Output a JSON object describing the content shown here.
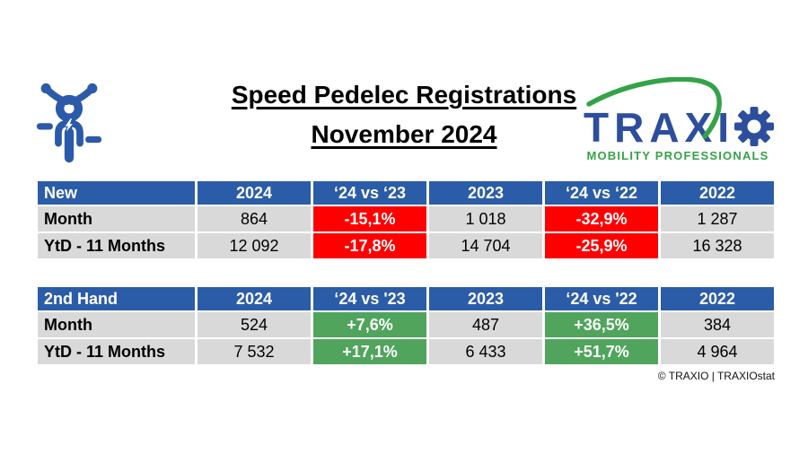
{
  "title": {
    "line1": "Speed Pedelec Registrations",
    "line2": "November 2024"
  },
  "logo": {
    "brand_text": "TRAXI",
    "tagline": "MOBILITY PROFESSIONALS"
  },
  "icons": {
    "bike": "speed-pedelec-icon",
    "gear": "gear-icon",
    "swoosh": "swoosh-arc"
  },
  "colors": {
    "header_blue": "#2B5CA7",
    "row_grey": "#D9D9D9",
    "negative_red": "#FF0000",
    "positive_green": "#50A45C",
    "brand_blue": "#2C4E9C",
    "brand_green": "#34A347",
    "icon_blue": "#2B5AA9"
  },
  "tables": [
    {
      "name": "New",
      "headers": [
        "New",
        "2024",
        "‘24 vs ‘23",
        "2023",
        "‘24 vs ‘22",
        "2022"
      ],
      "rows": [
        {
          "label": "Month",
          "cells": [
            {
              "v": "864",
              "type": "plain"
            },
            {
              "v": "-15,1%",
              "type": "neg"
            },
            {
              "v": "1 018",
              "type": "plain"
            },
            {
              "v": "-32,9%",
              "type": "neg"
            },
            {
              "v": "1 287",
              "type": "plain"
            }
          ]
        },
        {
          "label": "YtD - 11 Months",
          "cells": [
            {
              "v": "12 092",
              "type": "plain"
            },
            {
              "v": "-17,8%",
              "type": "neg"
            },
            {
              "v": "14 704",
              "type": "plain"
            },
            {
              "v": "-25,9%",
              "type": "neg"
            },
            {
              "v": "16 328",
              "type": "plain"
            }
          ]
        }
      ]
    },
    {
      "name": "2nd Hand",
      "headers": [
        "2nd Hand",
        "2024",
        "‘24 vs '23",
        "2023",
        "‘24 vs '22",
        "2022"
      ],
      "rows": [
        {
          "label": "Month",
          "cells": [
            {
              "v": "524",
              "type": "plain"
            },
            {
              "v": "+7,6%",
              "type": "pos"
            },
            {
              "v": "487",
              "type": "plain"
            },
            {
              "v": "+36,5%",
              "type": "pos"
            },
            {
              "v": "384",
              "type": "plain"
            }
          ]
        },
        {
          "label": "YtD - 11 Months",
          "cells": [
            {
              "v": "7 532",
              "type": "plain"
            },
            {
              "v": "+17,1%",
              "type": "pos"
            },
            {
              "v": "6 433",
              "type": "plain"
            },
            {
              "v": "+51,7%",
              "type": "pos"
            },
            {
              "v": "4 964",
              "type": "plain"
            }
          ]
        }
      ]
    }
  ],
  "footer": {
    "copyright": "© TRAXIO | TRAXIOstat"
  }
}
